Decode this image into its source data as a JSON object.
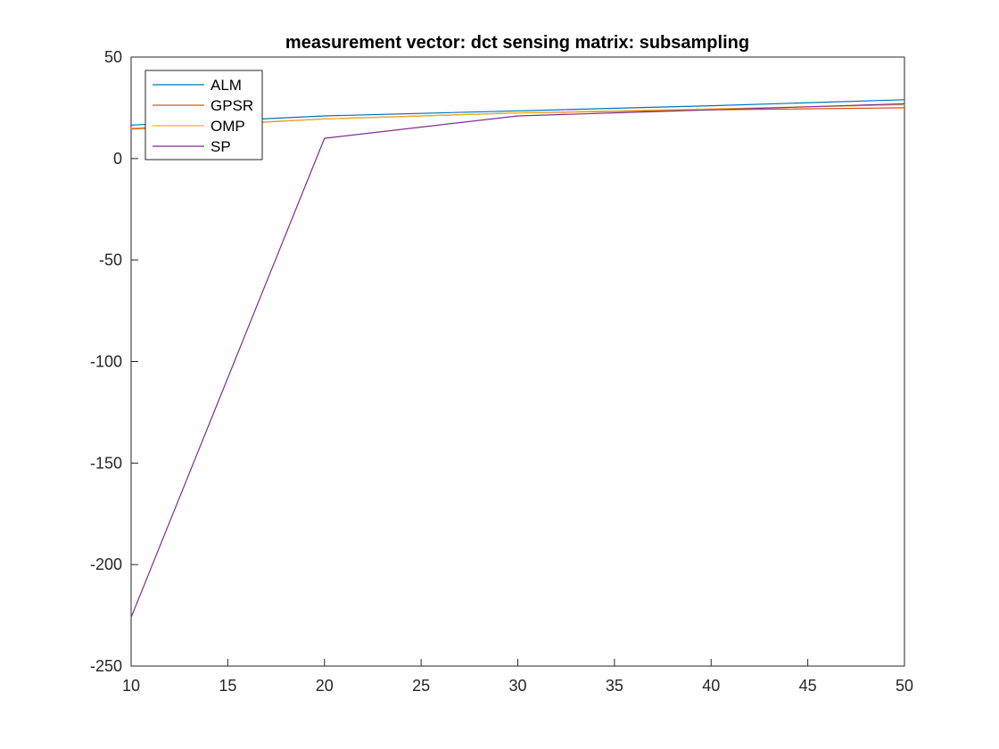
{
  "chart_data": {
    "type": "line",
    "title": "measurement vector: dct sensing matrix: subsampling",
    "xlabel": "",
    "ylabel": "",
    "xlim": [
      10,
      50
    ],
    "ylim": [
      -250,
      50
    ],
    "xticks": [
      10,
      15,
      20,
      25,
      30,
      35,
      40,
      45,
      50
    ],
    "yticks": [
      50,
      0,
      -50,
      -100,
      -150,
      -200,
      -250
    ],
    "x": [
      10,
      20,
      30,
      40,
      50
    ],
    "legend_position": "top-left",
    "series": [
      {
        "name": "ALM",
        "color": "#0072BD",
        "values": [
          16.5,
          21.0,
          23.5,
          26.0,
          29.0
        ]
      },
      {
        "name": "GPSR",
        "color": "#D95319",
        "values": [
          14.5,
          19.5,
          22.5,
          24.0,
          25.0
        ]
      },
      {
        "name": "OMP",
        "color": "#EDB120",
        "values": [
          15.0,
          19.5,
          22.5,
          24.5,
          26.5
        ]
      },
      {
        "name": "SP",
        "color": "#7E2F8E",
        "values": [
          -226.0,
          10.0,
          21.0,
          24.0,
          27.0
        ]
      }
    ]
  }
}
